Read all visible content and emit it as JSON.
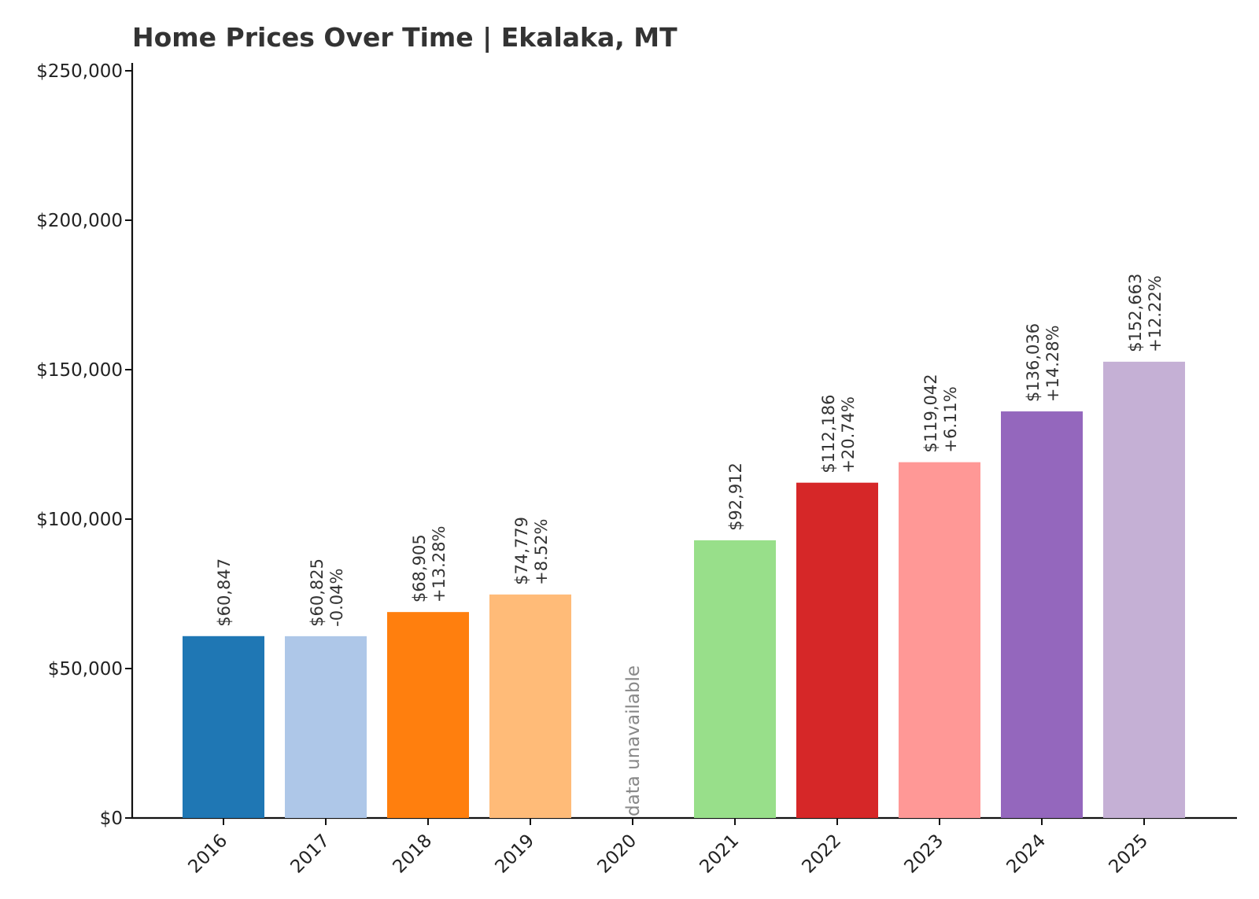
{
  "chart_data": {
    "type": "bar",
    "title": "Home Prices Over Time | Ekalaka, MT",
    "xlabel": "",
    "ylabel": "",
    "ylim": [
      0,
      250000
    ],
    "yticks": [
      0,
      50000,
      100000,
      150000,
      200000,
      250000
    ],
    "ytick_labels": [
      "$0",
      "$50,000",
      "$100,000",
      "$150,000",
      "$200,000",
      "$250,000"
    ],
    "grid": false,
    "legend": "none",
    "categories": [
      "2016",
      "2017",
      "2018",
      "2019",
      "2020",
      "2021",
      "2022",
      "2023",
      "2024",
      "2025"
    ],
    "values": [
      60847,
      60825,
      68905,
      74779,
      null,
      92912,
      112186,
      119042,
      136036,
      152663
    ],
    "value_labels": [
      "$60,847",
      "$60,825",
      "$68,905",
      "$74,779",
      "",
      "$92,912",
      "$112,186",
      "$119,042",
      "$136,036",
      "$152,663"
    ],
    "change_labels": [
      "",
      "-0.04%",
      "+13.28%",
      "+8.52%",
      "",
      "",
      "+20.74%",
      "+6.11%",
      "+14.28%",
      "+12.22%"
    ],
    "missing_label": "data unavailable",
    "colors": [
      "#1f77b4",
      "#aec7e8",
      "#ff7f0e",
      "#ffbb78",
      "#98df8a",
      "#98df8a",
      "#d62728",
      "#ff9896",
      "#9467bd",
      "#c5b0d5"
    ]
  }
}
